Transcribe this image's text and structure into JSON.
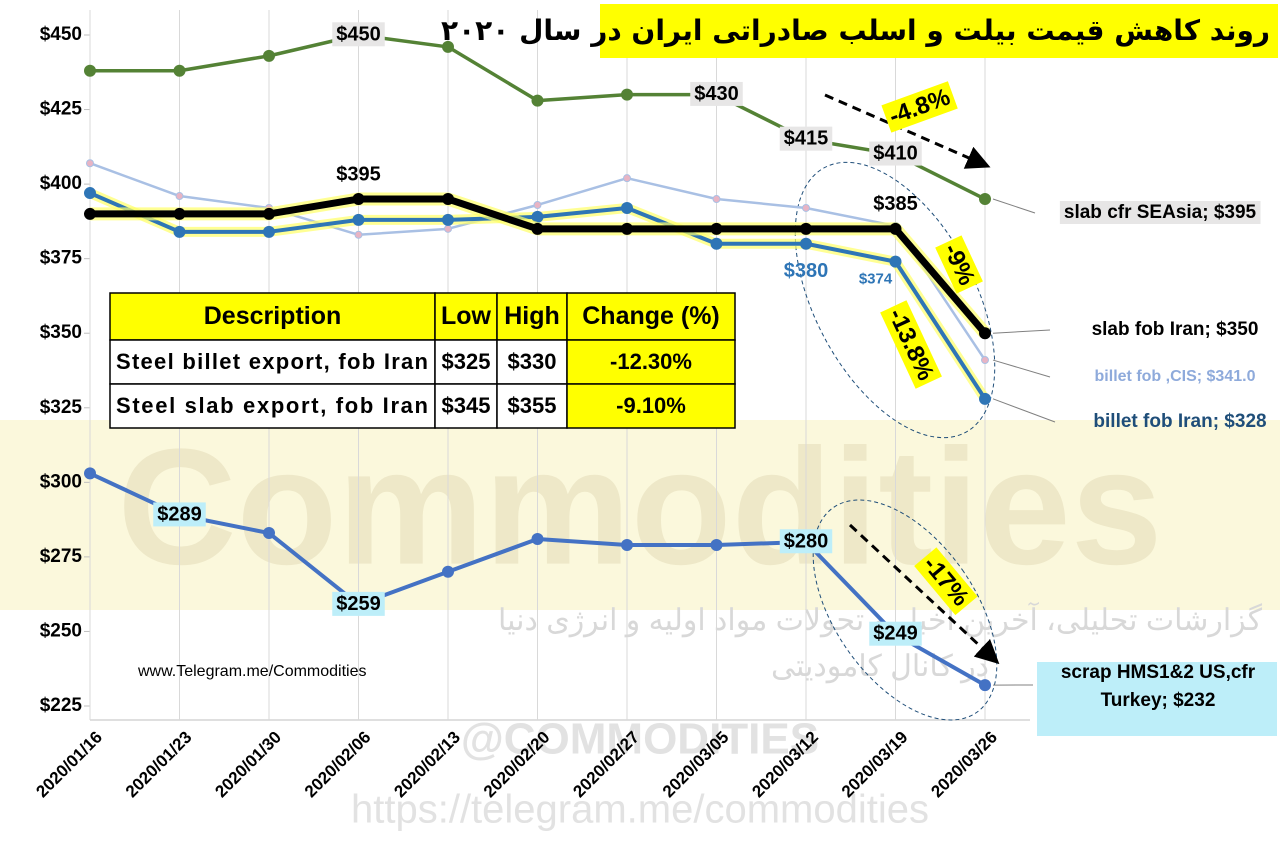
{
  "chart_data": {
    "type": "line",
    "title": "روند کاهش قیمت بیلت و اسلب صادراتی ایران در سال ۲۰۲۰",
    "categories": [
      "2020/01/16",
      "2020/01/23",
      "2020/01/30",
      "2020/02/06",
      "2020/02/13",
      "2020/02/20",
      "2020/02/27",
      "2020/03/05",
      "2020/03/12",
      "2020/03/19",
      "2020/03/26"
    ],
    "ylim": [
      225,
      450
    ],
    "yticks": [
      {
        "value": 225,
        "label": "$225"
      },
      {
        "value": 250,
        "label": "$250"
      },
      {
        "value": 275,
        "label": "$275"
      },
      {
        "value": 300,
        "label": "$300"
      },
      {
        "value": 325,
        "label": "$325"
      },
      {
        "value": 350,
        "label": "$350"
      },
      {
        "value": 375,
        "label": "$375"
      },
      {
        "value": 400,
        "label": "$400"
      },
      {
        "value": 425,
        "label": "$425"
      },
      {
        "value": 450,
        "label": "$450"
      }
    ],
    "grid": "vertical",
    "series": [
      {
        "name": "slab cfr SEAsia; $395",
        "color": "#548235",
        "values": [
          438,
          438,
          443,
          450,
          446,
          428,
          430,
          430,
          415,
          410,
          395
        ],
        "value_labels": [
          null,
          null,
          null,
          "$450",
          null,
          null,
          null,
          "$430",
          "$415",
          "$410",
          null
        ]
      },
      {
        "name": "billet fob ,CIS; $341.0",
        "color": "#a9c0e4",
        "values": [
          407,
          396,
          392,
          383,
          385,
          393,
          402,
          395,
          392,
          386,
          341
        ],
        "value_labels": [
          null,
          null,
          null,
          null,
          null,
          null,
          null,
          null,
          null,
          null,
          null
        ]
      },
      {
        "name": "billet fob Iran; $328",
        "color": "#2e75b6",
        "values": [
          397,
          384,
          384,
          388,
          388,
          389,
          392,
          380,
          380,
          374,
          328
        ],
        "value_labels": [
          null,
          null,
          null,
          null,
          null,
          null,
          null,
          null,
          "$380",
          "$374",
          null
        ]
      },
      {
        "name": "slab fob Iran; $350",
        "color": "#000000",
        "values": [
          390,
          390,
          390,
          395,
          395,
          385,
          385,
          385,
          385,
          385,
          350
        ],
        "value_labels": [
          null,
          null,
          null,
          "$395",
          null,
          null,
          null,
          null,
          null,
          "$385",
          null
        ]
      },
      {
        "name": "scrap HMS1&2 US,cfr Turkey; $232",
        "color": "#4472c4",
        "values": [
          303,
          289,
          283,
          259,
          270,
          281,
          279,
          279,
          280,
          249,
          232
        ],
        "value_labels": [
          null,
          "$289",
          null,
          "$259",
          null,
          null,
          null,
          null,
          "$280",
          "$249",
          null
        ]
      }
    ],
    "annotations": [
      "-4.8%",
      "-9%",
      "-13.8%",
      "-17%"
    ],
    "table": {
      "header": [
        "Description",
        "Low",
        "High",
        "Change (%)"
      ],
      "rows": [
        [
          "Steel billet export, fob Iran",
          "$325",
          "$330",
          "-12.30%"
        ],
        [
          "Steel slab export, fob Iran",
          "$345",
          "$355",
          "-9.10%"
        ]
      ]
    },
    "source": "www.Telegram.me/Commodities",
    "watermark": [
      "Commodities",
      "گزارشات تحلیلی، آخرین اخبار و تحولات مواد اولیه و انرژی دنیا",
      "در کانال کامودیتی",
      "@COMMODITIES",
      "https://telegram.me/commodities"
    ]
  }
}
